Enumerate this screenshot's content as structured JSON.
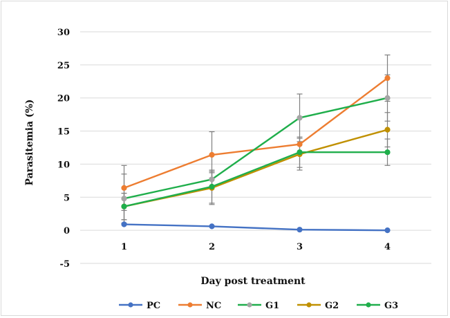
{
  "chart_data": {
    "type": "line",
    "xlabel": "Day post treatment",
    "ylabel": "Parasitemia (%)",
    "x": [
      1,
      2,
      3,
      4
    ],
    "x_tick_labels": [
      "1",
      "2",
      "3",
      "4"
    ],
    "ylim": [
      -5,
      30
    ],
    "y_ticks": [
      -5,
      0,
      5,
      10,
      15,
      20,
      25,
      30
    ],
    "y_tick_labels": [
      "-5",
      "0",
      "5",
      "10",
      "15",
      "20",
      "25",
      "30"
    ],
    "grid": "horizontal",
    "legend_position": "bottom",
    "series": [
      {
        "name": "PC",
        "color": "#4472C4",
        "values": [
          0.9,
          0.6,
          0.1,
          0.0
        ],
        "errors": [
          0,
          0,
          0,
          0
        ]
      },
      {
        "name": "NC",
        "color": "#ED7D31",
        "values": [
          6.4,
          11.4,
          13.0,
          23.0
        ],
        "errors": [
          3.4,
          3.5,
          0,
          3.5
        ]
      },
      {
        "name": "G1",
        "color": "#A5A5A5",
        "line_color": "#1FAE4B",
        "values": [
          4.8,
          7.7,
          17.0,
          20.0
        ],
        "errors": [
          3.7,
          1.0,
          3.6,
          3.5
        ]
      },
      {
        "name": "G2",
        "color": "#C09000",
        "values": [
          3.6,
          6.4,
          11.5,
          15.2
        ],
        "errors": [
          2.0,
          2.5,
          2.4,
          2.6
        ]
      },
      {
        "name": "G3",
        "color": "#1FAE4B",
        "values": [
          3.6,
          6.6,
          11.8,
          11.8
        ],
        "errors": [
          2.0,
          2.5,
          2.3,
          2.0
        ]
      }
    ]
  }
}
